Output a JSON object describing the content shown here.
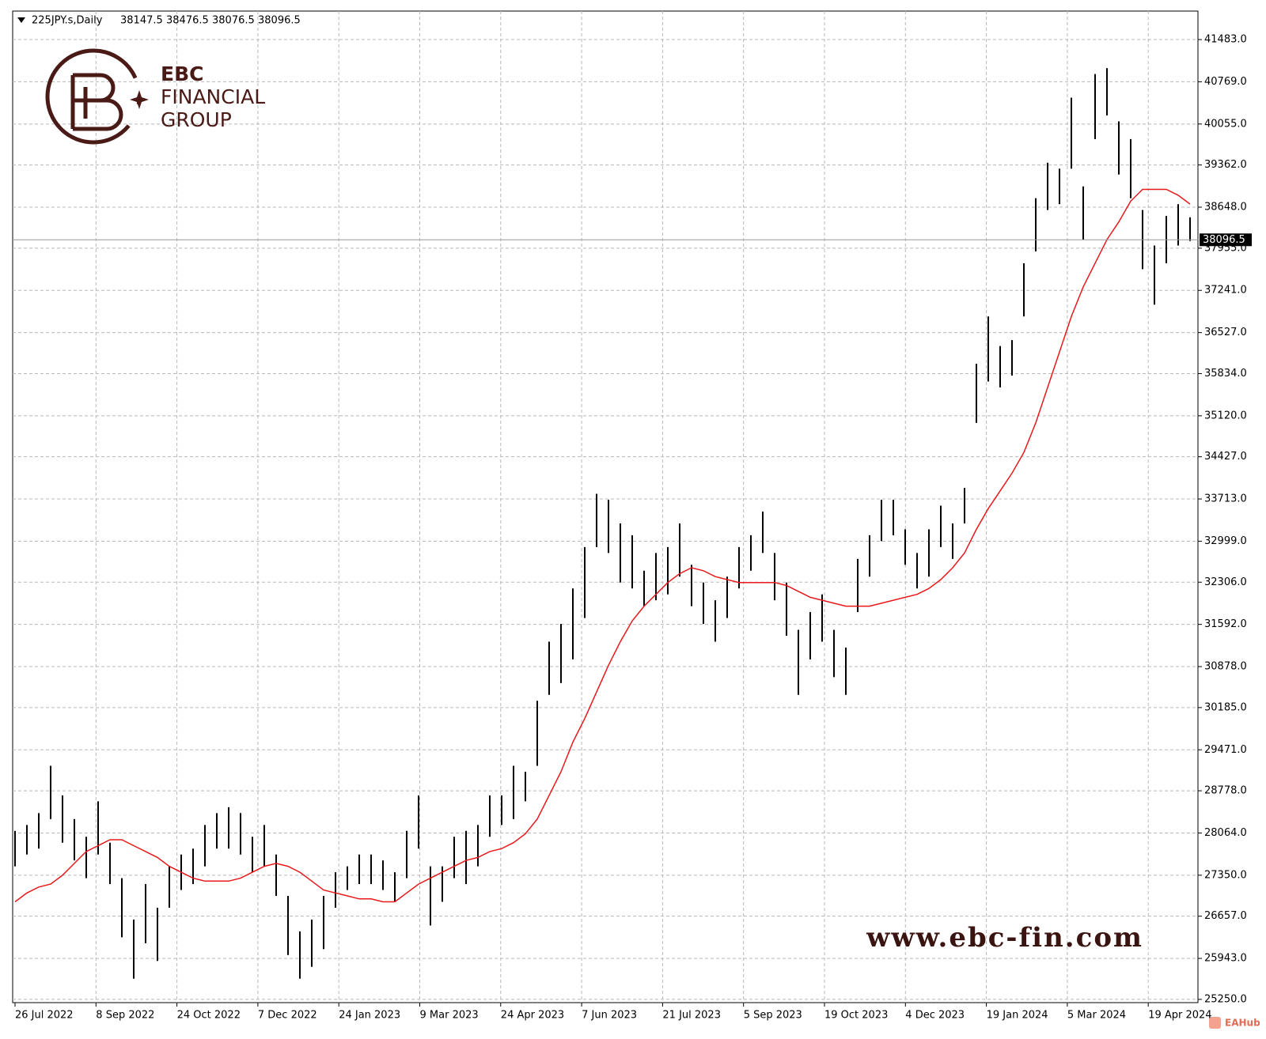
{
  "chart_data": {
    "type": "bar_hl",
    "title": "225JPY.s,Daily",
    "ohlc": [
      38147.5,
      38476.5,
      38076.5,
      38096.5
    ],
    "ylim": [
      25195,
      41965
    ],
    "yticks": [
      {
        "value": 25250,
        "label": "25250.0"
      },
      {
        "value": 25943,
        "label": "25943.0"
      },
      {
        "value": 26657,
        "label": "26657.0"
      },
      {
        "value": 27350,
        "label": "27350.0"
      },
      {
        "value": 28064,
        "label": "28064.0"
      },
      {
        "value": 28778,
        "label": "28778.0"
      },
      {
        "value": 29471,
        "label": "29471.0"
      },
      {
        "value": 30185,
        "label": "30185.0"
      },
      {
        "value": 30878,
        "label": "30878.0"
      },
      {
        "value": 31592,
        "label": "31592.0"
      },
      {
        "value": 32306,
        "label": "32306.0"
      },
      {
        "value": 32999,
        "label": "32999.0"
      },
      {
        "value": 33713,
        "label": "33713.0"
      },
      {
        "value": 34427,
        "label": "34427.0"
      },
      {
        "value": 35120,
        "label": "35120.0"
      },
      {
        "value": 35834,
        "label": "35834.0"
      },
      {
        "value": 36527,
        "label": "36527.0"
      },
      {
        "value": 37241,
        "label": "37241.0"
      },
      {
        "value": 37955,
        "label": "37955.0"
      },
      {
        "value": 38648,
        "label": "38648.0"
      },
      {
        "value": 39362,
        "label": "39362.0"
      },
      {
        "value": 40055,
        "label": "40055.0"
      },
      {
        "value": 40769,
        "label": "40769.0"
      },
      {
        "value": 41483,
        "label": "41483.0"
      }
    ],
    "xlabels": [
      "26 Jul 2022",
      "8 Sep 2022",
      "24 Oct 2022",
      "7 Dec 2022",
      "24 Jan 2023",
      "9 Mar 2023",
      "24 Apr 2023",
      "7 Jun 2023",
      "21 Jul 2023",
      "5 Sep 2023",
      "19 Oct 2023",
      "4 Dec 2023",
      "19 Jan 2024",
      "5 Mar 2024",
      "19 Apr 2024"
    ],
    "grid": true,
    "bar_color": "#000000",
    "low": [
      27500,
      27700,
      27800,
      28300,
      27900,
      27600,
      27300,
      27700,
      27200,
      26300,
      25600,
      26200,
      25900,
      26800,
      27100,
      27200,
      27500,
      27800,
      27800,
      27700,
      27400,
      27500,
      27000,
      26000,
      25600,
      25800,
      26100,
      26800,
      27100,
      27200,
      27200,
      27100,
      26900,
      27300,
      27800,
      26500,
      26900,
      27300,
      27200,
      27500,
      28000,
      28200,
      28300,
      28600,
      29200,
      30400,
      30600,
      31000,
      31700,
      32900,
      32800,
      32300,
      32200,
      31900,
      32000,
      32100,
      32400,
      31900,
      31600,
      31300,
      31700,
      32200,
      32500,
      32800,
      32000,
      31400,
      30400,
      31000,
      31300,
      30700,
      30400,
      31800,
      32400,
      33000,
      33100,
      32600,
      32200,
      32400,
      32900,
      32700,
      33300,
      35000,
      35700,
      35600,
      35800,
      36800,
      37900,
      38600,
      38700,
      39300,
      38100,
      39800,
      40200,
      39200,
      38800,
      37600,
      37000,
      37700,
      38000,
      38076.5
    ],
    "high": [
      28100,
      28200,
      28400,
      29200,
      28700,
      28300,
      28000,
      28600,
      27900,
      27300,
      26600,
      27200,
      26800,
      27500,
      27700,
      27800,
      28200,
      28400,
      28500,
      28400,
      28000,
      28200,
      27700,
      27000,
      26400,
      26600,
      27000,
      27400,
      27500,
      27700,
      27700,
      27600,
      27400,
      28100,
      28700,
      27500,
      27500,
      28000,
      28100,
      28200,
      28700,
      28700,
      29200,
      29100,
      30300,
      31300,
      31600,
      32200,
      32900,
      33800,
      33700,
      33300,
      33100,
      32500,
      32800,
      32900,
      33300,
      32600,
      32300,
      32000,
      32400,
      32900,
      33100,
      33500,
      32800,
      32300,
      31500,
      31800,
      32100,
      31500,
      31200,
      32700,
      33100,
      33700,
      33700,
      33200,
      32800,
      33200,
      33600,
      33300,
      33900,
      36000,
      36800,
      36300,
      36400,
      37700,
      38800,
      39400,
      39300,
      40500,
      39000,
      40900,
      41000,
      40100,
      39800,
      38600,
      38000,
      38500,
      38700,
      38476.5
    ],
    "ma": {
      "color": "#e8191b",
      "values": [
        26900,
        27050,
        27150,
        27200,
        27350,
        27550,
        27750,
        27850,
        27950,
        27950,
        27850,
        27750,
        27650,
        27500,
        27400,
        27300,
        27250,
        27250,
        27250,
        27300,
        27400,
        27500,
        27550,
        27500,
        27400,
        27250,
        27100,
        27050,
        27000,
        26950,
        26950,
        26900,
        26900,
        27050,
        27200,
        27300,
        27400,
        27500,
        27600,
        27650,
        27750,
        27800,
        27900,
        28050,
        28300,
        28700,
        29100,
        29600,
        30000,
        30450,
        30900,
        31300,
        31650,
        31900,
        32100,
        32300,
        32450,
        32550,
        32500,
        32400,
        32350,
        32300,
        32300,
        32300,
        32300,
        32250,
        32150,
        32050,
        32000,
        31950,
        31900,
        31900,
        31900,
        31950,
        32000,
        32050,
        32100,
        32200,
        32350,
        32550,
        32800,
        33200,
        33550,
        33850,
        34150,
        34500,
        35000,
        35600,
        36200,
        36800,
        37300,
        37700,
        38100,
        38400,
        38750,
        38950,
        38950,
        38950,
        38850,
        38700
      ]
    }
  },
  "branding": {
    "logo": "EBC",
    "line1": "FINANCIAL",
    "line2": "GROUP",
    "watermark": "www.ebc-fin.com",
    "badge": "EAHub"
  }
}
